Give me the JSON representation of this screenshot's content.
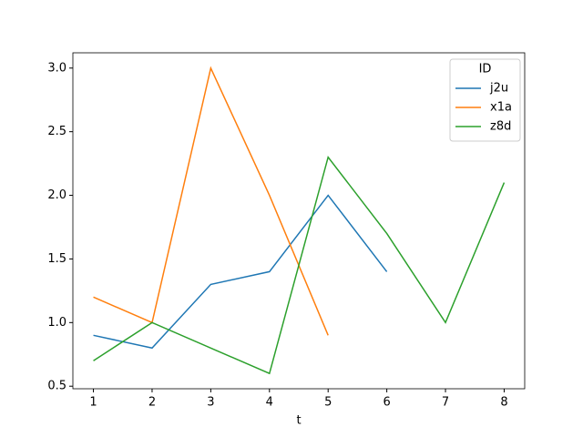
{
  "chart_data": {
    "type": "line",
    "x": [
      1,
      2,
      3,
      4,
      5,
      6,
      7,
      8
    ],
    "x_label": "t",
    "legend_title": "ID",
    "legend_position": "upper right",
    "series": [
      {
        "name": "j2u",
        "color": "#1f77b4",
        "values": [
          0.9,
          0.8,
          1.3,
          1.4,
          2.0,
          1.4,
          null,
          null
        ]
      },
      {
        "name": "x1a",
        "color": "#ff7f0e",
        "values": [
          1.2,
          1.0,
          3.0,
          2.0,
          0.9,
          null,
          null,
          null
        ]
      },
      {
        "name": "z8d",
        "color": "#2ca02c",
        "values": [
          0.7,
          1.0,
          0.8,
          0.6,
          2.3,
          1.7,
          1.0,
          2.1
        ]
      }
    ],
    "xlim": [
      0.65,
      8.35
    ],
    "ylim": [
      0.48,
      3.12
    ],
    "xticks": [
      1,
      2,
      3,
      4,
      5,
      6,
      7,
      8
    ],
    "yticks": [
      {
        "value": 0.5,
        "label": "0.5"
      },
      {
        "value": 1.0,
        "label": "1.0"
      },
      {
        "value": 1.5,
        "label": "1.5"
      },
      {
        "value": 2.0,
        "label": "2.0"
      },
      {
        "value": 2.5,
        "label": "2.5"
      },
      {
        "value": 3.0,
        "label": "3.0"
      }
    ],
    "grid": false
  }
}
